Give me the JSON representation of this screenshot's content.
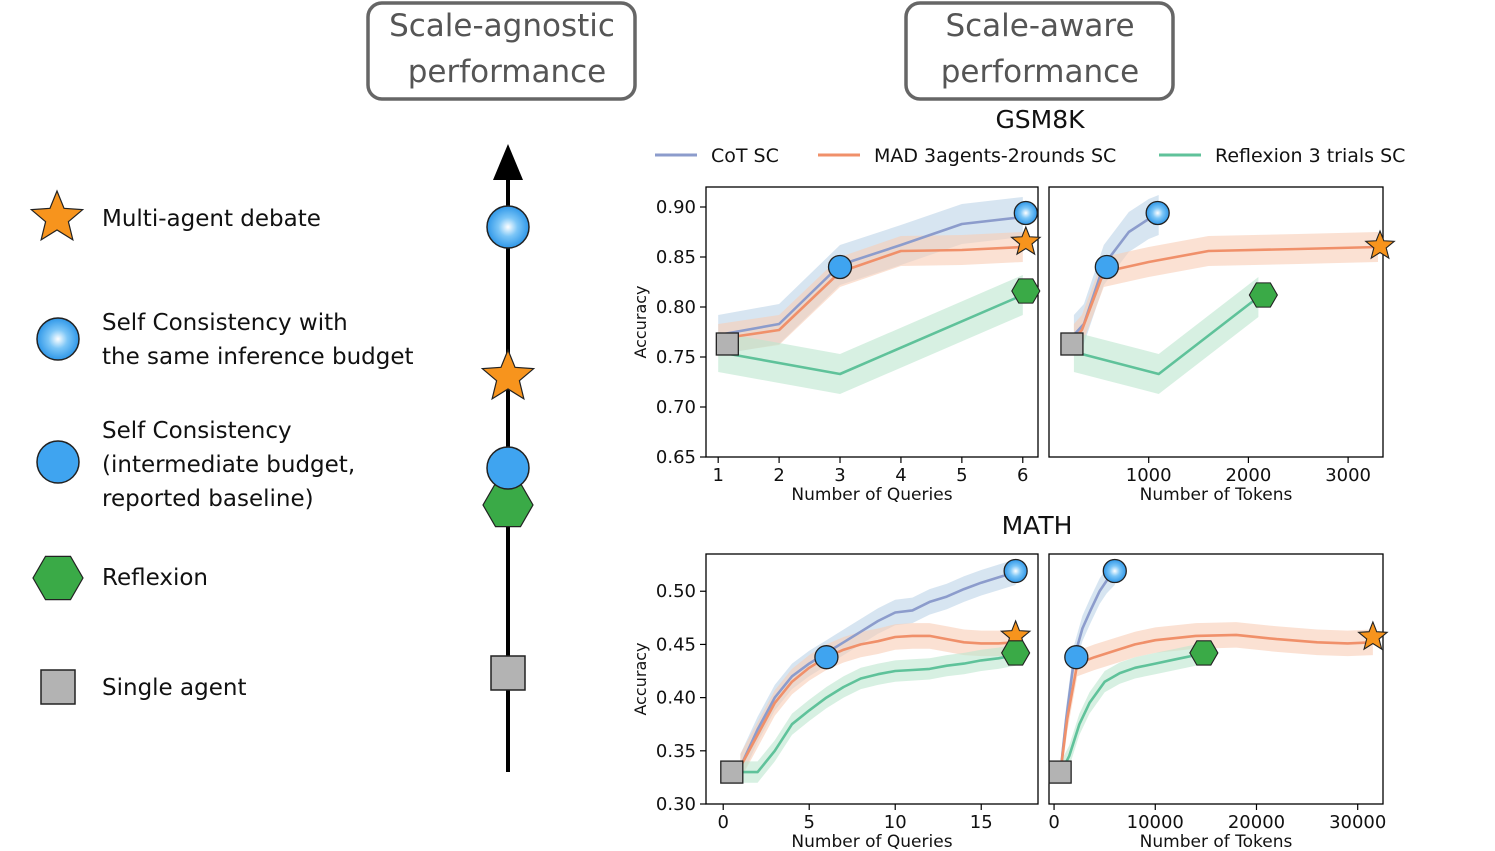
{
  "headers": {
    "agnostic": [
      "Scale-agnostic",
      "performance"
    ],
    "aware": [
      "Scale-aware",
      "performance"
    ]
  },
  "legend_left": [
    {
      "marker": "star-orange",
      "lines": [
        "Multi-agent debate"
      ]
    },
    {
      "marker": "circle-blue-shiny",
      "lines": [
        "Self Consistency with",
        "the same inference budget"
      ]
    },
    {
      "marker": "circle-blue",
      "lines": [
        "Self Consistency",
        "(intermediate budget,",
        "reported baseline)"
      ]
    },
    {
      "marker": "hexagon-green",
      "lines": [
        "Reflexion"
      ]
    },
    {
      "marker": "square-gray",
      "lines": [
        "Single agent"
      ]
    }
  ],
  "axis_order": [
    "circle-blue-shiny",
    "star-orange",
    "circle-blue",
    "hexagon-green",
    "square-gray"
  ],
  "colors": {
    "cot": "#8c9ccc",
    "cot_band": "#bdd3e8",
    "mad": "#f0906a",
    "mad_band": "#f8cdb5",
    "ref": "#5fc29a",
    "ref_band": "#bde6ce",
    "star": "#f7941d",
    "circle": "#3fa4f0",
    "hex": "#3aaa47",
    "square": "#b3b3b3",
    "box_border": "#666666"
  },
  "chart_data": [
    {
      "type": "line",
      "title": "GSM8K",
      "legend": [
        "CoT SC",
        "MAD 3agents-2rounds SC",
        "Reflexion 3 trials SC"
      ],
      "xlabel": "Number of Queries",
      "ylabel": "Accuracy",
      "xlim": [
        0.8,
        6.25
      ],
      "ylim": [
        0.65,
        0.92
      ],
      "xticks": [
        1,
        2,
        3,
        4,
        5,
        6
      ],
      "yticks": [
        "0.65",
        "0.70",
        "0.75",
        "0.80",
        "0.85",
        "0.90"
      ],
      "series": [
        {
          "name": "CoT SC",
          "x": [
            1,
            2,
            3,
            4,
            5,
            6
          ],
          "y": [
            0.772,
            0.783,
            0.842,
            0.862,
            0.883,
            0.89
          ],
          "band": 0.02
        },
        {
          "name": "MAD 3agents-2rounds SC",
          "x": [
            1,
            2,
            3,
            4,
            5,
            6
          ],
          "y": [
            0.768,
            0.777,
            0.835,
            0.856,
            0.857,
            0.86
          ],
          "band": 0.015
        },
        {
          "name": "Reflexion 3 trials SC",
          "x": [
            1,
            3,
            6
          ],
          "y": [
            0.755,
            0.733,
            0.812
          ],
          "band": 0.02
        }
      ],
      "markers": [
        {
          "shape": "square",
          "x": 1.15,
          "y": 0.763
        },
        {
          "shape": "circle",
          "x": 3.0,
          "y": 0.84
        },
        {
          "shape": "circle-shiny",
          "x": 6.05,
          "y": 0.894
        },
        {
          "shape": "star",
          "x": 6.05,
          "y": 0.865
        },
        {
          "shape": "hexagon",
          "x": 6.05,
          "y": 0.816
        }
      ]
    },
    {
      "type": "line",
      "xlabel": "Number of Tokens",
      "xlim": [
        0,
        3350
      ],
      "ylim": [
        0.65,
        0.92
      ],
      "xticks": [
        1000,
        2000,
        3000
      ],
      "yticks": [],
      "series": [
        {
          "name": "CoT SC",
          "x": [
            250,
            350,
            550,
            800,
            1000,
            1100
          ],
          "y": [
            0.772,
            0.783,
            0.842,
            0.875,
            0.888,
            0.892
          ],
          "band": 0.02
        },
        {
          "name": "MAD 3agents-2rounds SC",
          "x": [
            250,
            330,
            550,
            1000,
            1600,
            2500,
            3300
          ],
          "y": [
            0.768,
            0.777,
            0.835,
            0.845,
            0.856,
            0.858,
            0.86
          ],
          "band": 0.015
        },
        {
          "name": "Reflexion 3 trials SC",
          "x": [
            250,
            1100,
            2100
          ],
          "y": [
            0.755,
            0.733,
            0.81
          ],
          "band": 0.02
        }
      ],
      "markers": [
        {
          "shape": "square",
          "x": 230,
          "y": 0.763
        },
        {
          "shape": "circle",
          "x": 580,
          "y": 0.84
        },
        {
          "shape": "circle-shiny",
          "x": 1090,
          "y": 0.894
        },
        {
          "shape": "star",
          "x": 3320,
          "y": 0.861
        },
        {
          "shape": "hexagon",
          "x": 2150,
          "y": 0.812
        }
      ]
    },
    {
      "type": "line",
      "title": "MATH",
      "xlabel": "Number of Queries",
      "ylabel": "Accuracy",
      "xlim": [
        -1,
        18.3
      ],
      "ylim": [
        0.3,
        0.535
      ],
      "xticks": [
        0,
        5,
        10,
        15
      ],
      "yticks": [
        "0.30",
        "0.35",
        "0.40",
        "0.45",
        "0.50"
      ],
      "series": [
        {
          "name": "CoT SC",
          "x": [
            1,
            2,
            3,
            4,
            5,
            6,
            7,
            8,
            9,
            10,
            11,
            12,
            13,
            14,
            15,
            16,
            17
          ],
          "y": [
            0.335,
            0.37,
            0.4,
            0.42,
            0.432,
            0.442,
            0.452,
            0.462,
            0.472,
            0.48,
            0.482,
            0.49,
            0.495,
            0.502,
            0.508,
            0.513,
            0.518
          ],
          "band": 0.012
        },
        {
          "name": "MAD 3agents-2rounds SC",
          "x": [
            1,
            2,
            3,
            4,
            5,
            6,
            7,
            8,
            9,
            10,
            11,
            12,
            13,
            14,
            15,
            16,
            17
          ],
          "y": [
            0.335,
            0.365,
            0.395,
            0.415,
            0.428,
            0.438,
            0.445,
            0.45,
            0.453,
            0.457,
            0.458,
            0.458,
            0.455,
            0.452,
            0.451,
            0.451,
            0.452
          ],
          "band": 0.012
        },
        {
          "name": "Reflexion 3 trials SC",
          "x": [
            1,
            2,
            3,
            4,
            5,
            6,
            7,
            8,
            9,
            10,
            11,
            12,
            13,
            14,
            15,
            16,
            17
          ],
          "y": [
            0.33,
            0.33,
            0.35,
            0.375,
            0.388,
            0.4,
            0.41,
            0.418,
            0.422,
            0.425,
            0.426,
            0.427,
            0.43,
            0.432,
            0.435,
            0.437,
            0.44
          ],
          "band": 0.01
        }
      ],
      "markers": [
        {
          "shape": "square",
          "x": 0.5,
          "y": 0.33
        },
        {
          "shape": "circle",
          "x": 6.0,
          "y": 0.438
        },
        {
          "shape": "circle-shiny",
          "x": 17.0,
          "y": 0.519
        },
        {
          "shape": "star",
          "x": 17.0,
          "y": 0.458
        },
        {
          "shape": "hexagon",
          "x": 17.0,
          "y": 0.442
        }
      ]
    },
    {
      "type": "line",
      "xlabel": "Number of Tokens",
      "xlim": [
        -500,
        32500
      ],
      "ylim": [
        0.3,
        0.535
      ],
      "xticks": [
        0,
        10000,
        20000,
        30000
      ],
      "yticks": [],
      "series": [
        {
          "name": "CoT SC",
          "x": [
            700,
            1200,
            2000,
            2800,
            3600,
            4500,
            5200,
            6000
          ],
          "y": [
            0.335,
            0.38,
            0.438,
            0.465,
            0.482,
            0.5,
            0.51,
            0.518
          ],
          "band": 0.012
        },
        {
          "name": "MAD 3agents-2rounds SC",
          "x": [
            700,
            1300,
            2300,
            4000,
            6000,
            8000,
            10000,
            14000,
            18000,
            22000,
            26000,
            29000,
            31500
          ],
          "y": [
            0.335,
            0.38,
            0.432,
            0.438,
            0.444,
            0.45,
            0.454,
            0.458,
            0.459,
            0.455,
            0.452,
            0.451,
            0.452
          ],
          "band": 0.012
        },
        {
          "name": "Reflexion 3 trials SC",
          "x": [
            700,
            1500,
            2500,
            3500,
            5000,
            6500,
            8000,
            10000,
            12000,
            14000,
            15000
          ],
          "y": [
            0.33,
            0.345,
            0.375,
            0.395,
            0.415,
            0.423,
            0.428,
            0.432,
            0.436,
            0.44,
            0.442
          ],
          "band": 0.01
        }
      ],
      "markers": [
        {
          "shape": "square",
          "x": 600,
          "y": 0.33
        },
        {
          "shape": "circle",
          "x": 2200,
          "y": 0.438
        },
        {
          "shape": "circle-shiny",
          "x": 6000,
          "y": 0.519
        },
        {
          "shape": "star",
          "x": 31500,
          "y": 0.457
        },
        {
          "shape": "hexagon",
          "x": 14800,
          "y": 0.442
        }
      ]
    }
  ]
}
